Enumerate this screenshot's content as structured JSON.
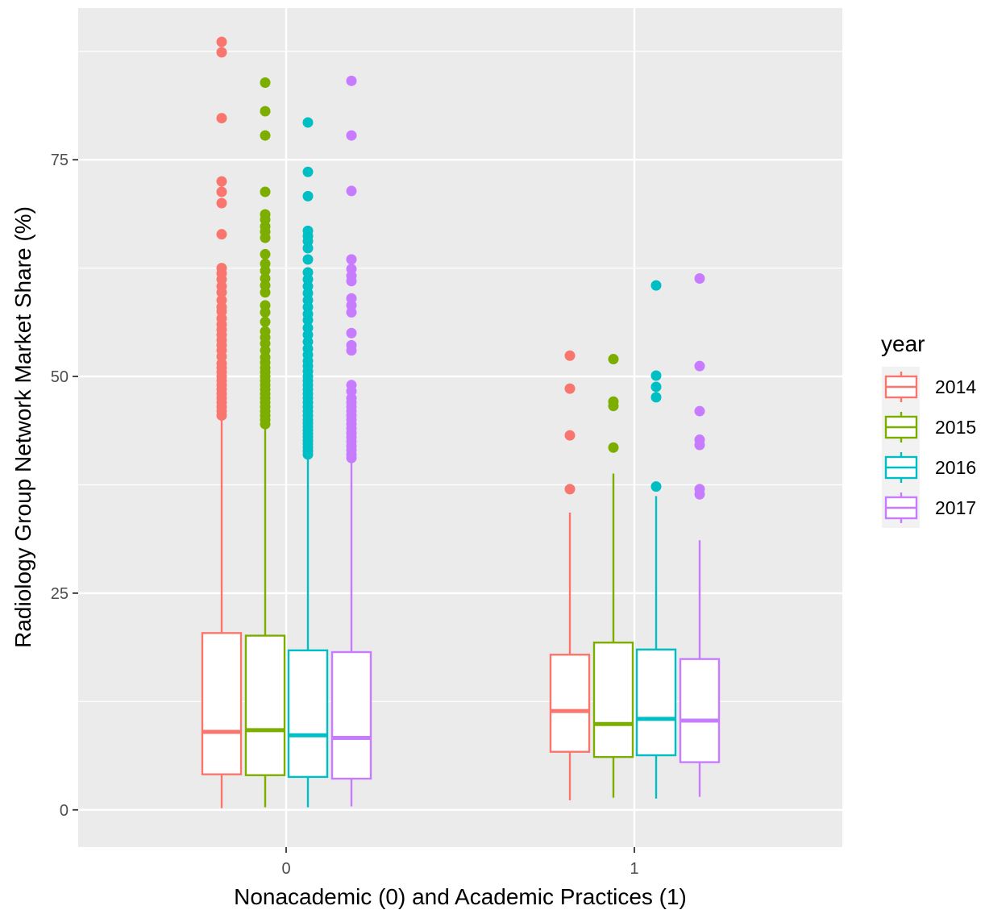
{
  "chart_data": {
    "type": "boxplot",
    "xlabel": "Nonacademic (0) and Academic Practices (1)",
    "ylabel": "Radiology Group Network Market Share (%)",
    "categories": [
      "0",
      "1"
    ],
    "yticks": [
      "0",
      "25",
      "50",
      "75"
    ],
    "ytick_values": [
      0,
      25,
      50,
      75
    ],
    "ylim": [
      -4.3,
      92.5
    ],
    "grid": true,
    "legend": {
      "title": "year",
      "position": "right",
      "entries": [
        "2014",
        "2015",
        "2016",
        "2017"
      ]
    },
    "series": [
      {
        "name": "2014",
        "color": "#F8766D",
        "boxes": [
          {
            "category": "0",
            "min": 0.2,
            "q1": 4.1,
            "median": 9.0,
            "q3": 20.4,
            "max": 45.2,
            "outliers": [
              45.5,
              46.0,
              46.5,
              47.0,
              47.5,
              48.0,
              48.5,
              49.0,
              49.5,
              50.0,
              50.5,
              51.0,
              51.5,
              52.3,
              53.0,
              53.6,
              54.2,
              54.8,
              55.4,
              56.0,
              56.7,
              57.5,
              58.0,
              58.8,
              59.7,
              60.4,
              61.2,
              61.9,
              62.5,
              66.4,
              70.0,
              71.3,
              72.5,
              79.8,
              87.4,
              88.6
            ]
          },
          {
            "category": "1",
            "min": 1.1,
            "q1": 6.7,
            "median": 11.4,
            "q3": 17.9,
            "max": 34.3,
            "outliers": [
              37.0,
              43.2,
              48.6,
              52.4
            ]
          }
        ]
      },
      {
        "name": "2015",
        "color": "#7CAE00",
        "boxes": [
          {
            "category": "0",
            "min": 0.3,
            "q1": 4.0,
            "median": 9.2,
            "q3": 20.1,
            "max": 44.2,
            "outliers": [
              44.5,
              45.0,
              45.5,
              46.0,
              46.5,
              47.0,
              47.5,
              48.0,
              48.5,
              49.0,
              49.5,
              50.0,
              50.5,
              51.0,
              51.6,
              52.2,
              53.0,
              53.8,
              54.5,
              55.2,
              56.3,
              57.4,
              58.2,
              59.7,
              60.5,
              61.3,
              62.2,
              63.0,
              64.1,
              66.0,
              66.7,
              67.3,
              68.1,
              68.7,
              71.3,
              77.8,
              80.6,
              83.9
            ]
          },
          {
            "category": "1",
            "min": 1.4,
            "q1": 6.1,
            "median": 9.9,
            "q3": 19.3,
            "max": 38.8,
            "outliers": [
              41.8,
              46.6,
              47.1,
              52.0
            ]
          }
        ]
      },
      {
        "name": "2016",
        "color": "#00BFC4",
        "boxes": [
          {
            "category": "0",
            "min": 0.3,
            "q1": 3.8,
            "median": 8.6,
            "q3": 18.4,
            "max": 40.7,
            "outliers": [
              41.0,
              41.4,
              41.8,
              42.2,
              42.6,
              43.0,
              43.4,
              43.8,
              44.2,
              44.6,
              45.0,
              45.5,
              46.0,
              46.5,
              47.0,
              47.5,
              48.0,
              48.5,
              49.0,
              49.5,
              50.0,
              50.6,
              51.2,
              51.8,
              52.5,
              53.2,
              54.0,
              54.8,
              55.6,
              56.5,
              57.2,
              58.0,
              58.8,
              59.6,
              60.4,
              61.2,
              62.0,
              63.5,
              64.8,
              65.6,
              66.2,
              66.8,
              70.8,
              73.6,
              79.3
            ]
          },
          {
            "category": "1",
            "min": 1.3,
            "q1": 6.3,
            "median": 10.5,
            "q3": 18.5,
            "max": 36.2,
            "outliers": [
              37.3,
              47.6,
              48.8,
              50.1,
              60.5
            ]
          }
        ]
      },
      {
        "name": "2017",
        "color": "#C77CFF",
        "boxes": [
          {
            "category": "0",
            "min": 0.4,
            "q1": 3.6,
            "median": 8.3,
            "q3": 18.2,
            "max": 40.3,
            "outliers": [
              40.6,
              41.0,
              41.5,
              42.0,
              42.5,
              43.0,
              43.5,
              44.0,
              44.5,
              45.0,
              45.5,
              46.0,
              46.5,
              47.0,
              47.5,
              48.3,
              49.0,
              53.0,
              53.6,
              55.0,
              57.4,
              58.2,
              59.0,
              61.0,
              61.6,
              62.4,
              63.5,
              71.4,
              77.8,
              84.1
            ]
          },
          {
            "category": "1",
            "min": 1.5,
            "q1": 5.5,
            "median": 10.3,
            "q3": 17.4,
            "max": 31.1,
            "outliers": [
              36.4,
              37.0,
              42.1,
              42.7,
              46.0,
              51.2,
              61.3
            ]
          }
        ]
      }
    ]
  }
}
